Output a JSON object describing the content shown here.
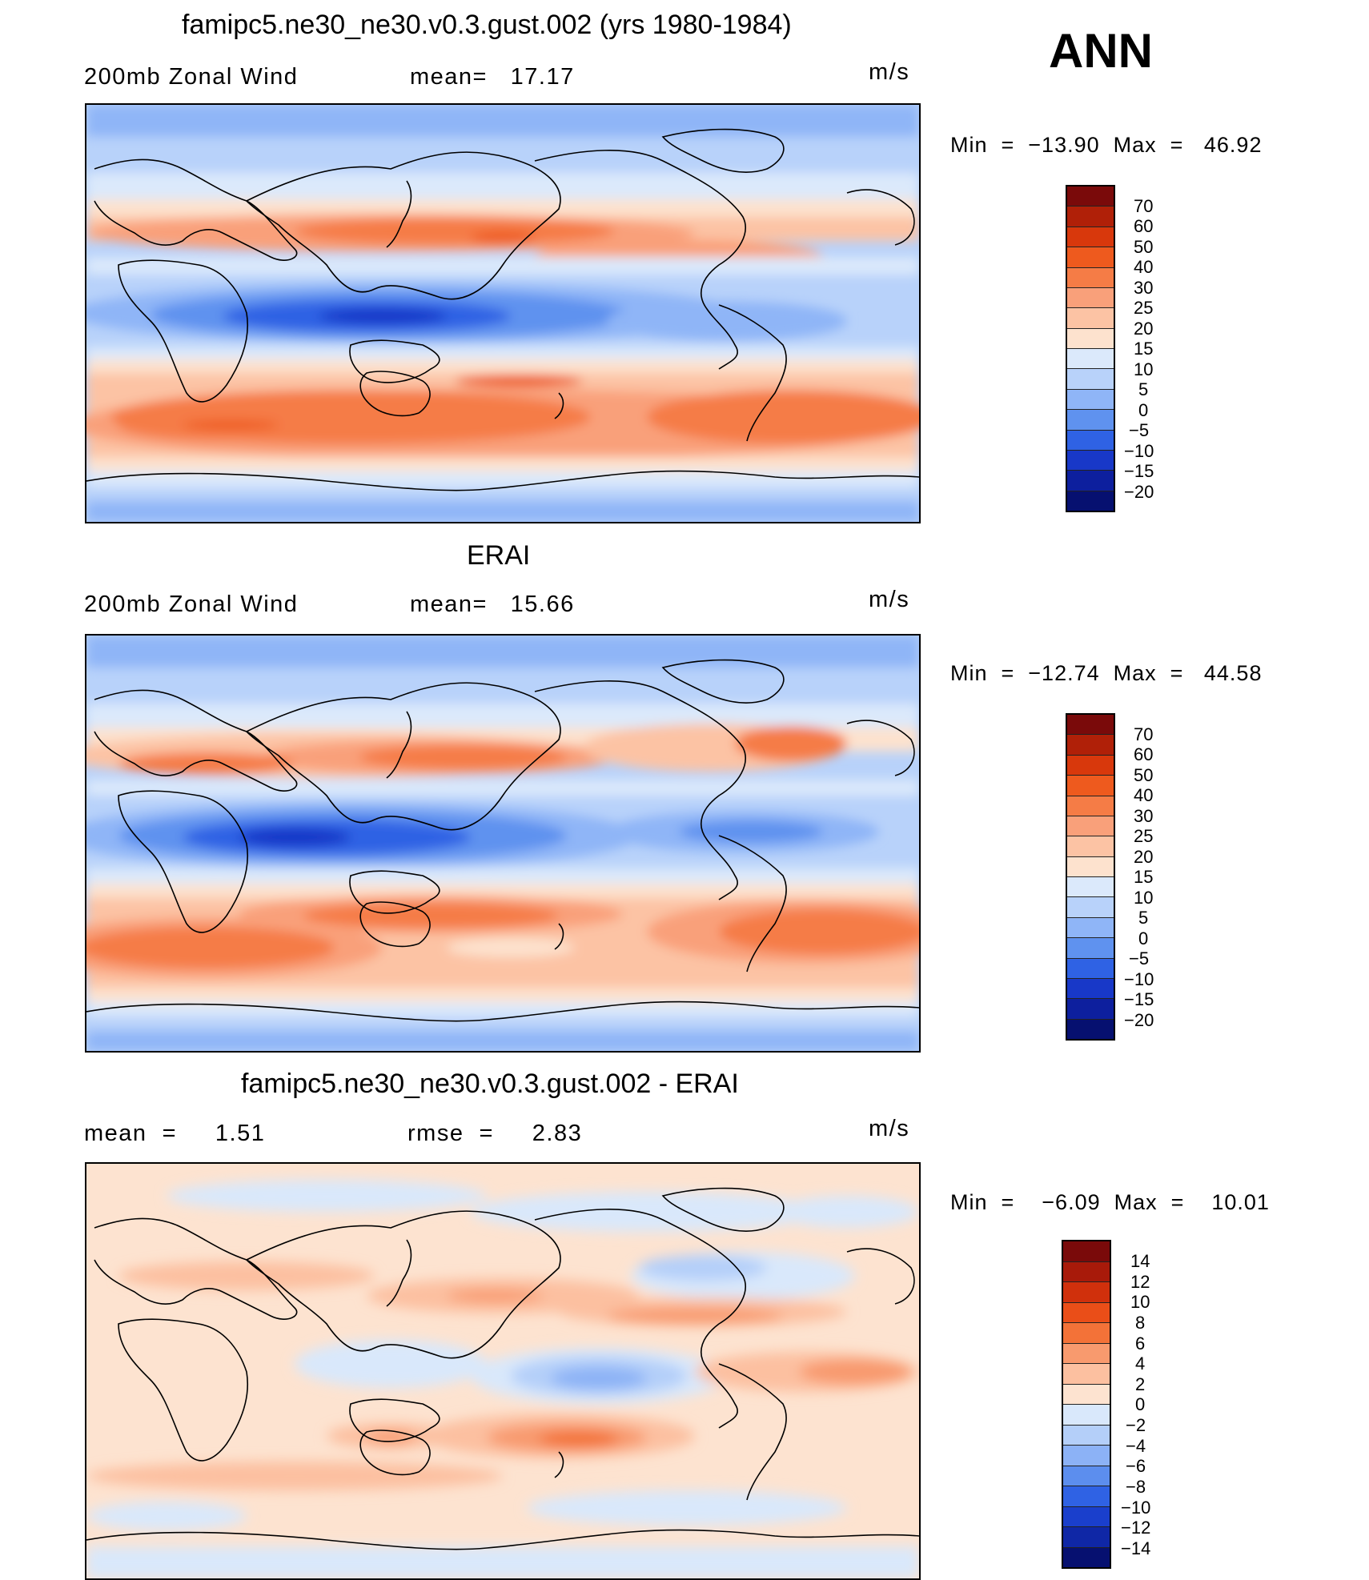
{
  "season": "ANN",
  "panels": [
    {
      "title": "famipc5.ne30_ne30.v0.3.gust.002 (yrs 1980-1984)",
      "left_label": "200mb Zonal Wind",
      "mid_label": "mean=   17.17",
      "units": "m/s",
      "minmax": "Min  =  −13.90  Max  =   46.92"
    },
    {
      "title": "ERAI",
      "left_label": "200mb Zonal Wind",
      "mid_label": "mean=   15.66",
      "units": "m/s",
      "minmax": "Min  =  −12.74  Max  =   44.58"
    },
    {
      "title": "famipc5.ne30_ne30.v0.3.gust.002 - ERAI",
      "left_label": "mean  =     1.51",
      "mid_label": "rmse  =     2.83",
      "units": "m/s",
      "minmax": "Min  =    −6.09  Max  =    10.01"
    }
  ],
  "colorbars": {
    "field": {
      "labels": [
        "70",
        "60",
        "50",
        "40",
        "30",
        "25",
        "20",
        "15",
        "10",
        "5",
        "0",
        "−5",
        "−10",
        "−15",
        "−20"
      ],
      "colors": [
        "#7a0a0a",
        "#b02008",
        "#d8380c",
        "#ee5a1e",
        "#f57c46",
        "#f9a07a",
        "#fcc3a4",
        "#fde2ce",
        "#dbe9fb",
        "#b8d2fa",
        "#8fb5f7",
        "#5f92ef",
        "#2f62e4",
        "#1838c8",
        "#0d1f9e",
        "#061070"
      ]
    },
    "diff": {
      "labels": [
        "14",
        "12",
        "10",
        "8",
        "6",
        "4",
        "2",
        "0",
        "−2",
        "−4",
        "−6",
        "−8",
        "−10",
        "−12",
        "−14"
      ],
      "colors": [
        "#7a0a0a",
        "#a81a0a",
        "#d0300c",
        "#ea4e18",
        "#f37238",
        "#f89a6e",
        "#fcc0a0",
        "#fde3d0",
        "#d9e8fb",
        "#b4cff9",
        "#8cb2f6",
        "#5c8eee",
        "#2f62e4",
        "#1a3fcc",
        "#0f27a6",
        "#061070"
      ]
    }
  },
  "chart_data": [
    {
      "type": "heatmap",
      "title": "famipc5.ne30_ne30.v0.3.gust.002 (yrs 1980-1984)",
      "variable": "200mb Zonal Wind",
      "units": "m/s",
      "mean": 17.17,
      "min": -13.9,
      "max": 46.92,
      "levels": [
        -20,
        -15,
        -10,
        -5,
        0,
        5,
        10,
        15,
        20,
        25,
        30,
        40,
        50,
        60,
        70
      ]
    },
    {
      "type": "heatmap",
      "title": "ERAI",
      "variable": "200mb Zonal Wind",
      "units": "m/s",
      "mean": 15.66,
      "min": -12.74,
      "max": 44.58,
      "levels": [
        -20,
        -15,
        -10,
        -5,
        0,
        5,
        10,
        15,
        20,
        25,
        30,
        40,
        50,
        60,
        70
      ]
    },
    {
      "type": "heatmap",
      "title": "famipc5.ne30_ne30.v0.3.gust.002 - ERAI",
      "units": "m/s",
      "mean": 1.51,
      "rmse": 2.83,
      "min": -6.09,
      "max": 10.01,
      "levels": [
        -14,
        -12,
        -10,
        -8,
        -6,
        -4,
        -2,
        0,
        2,
        4,
        6,
        8,
        10,
        12,
        14
      ]
    }
  ]
}
